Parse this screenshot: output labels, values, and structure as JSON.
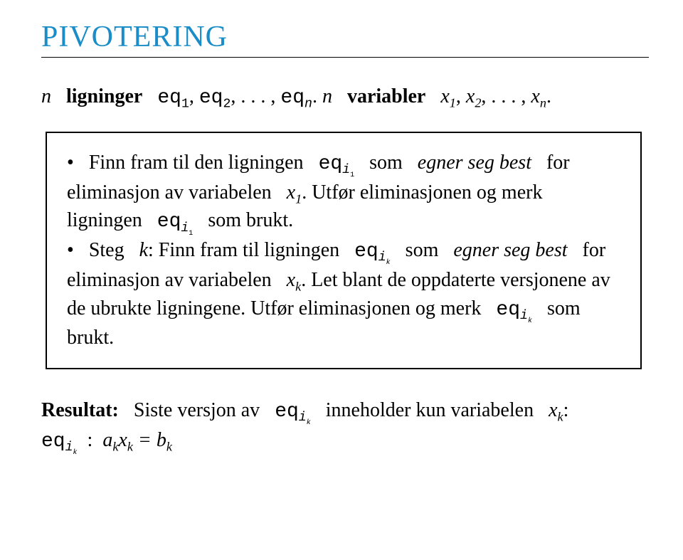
{
  "title_color": "#1a8cc8",
  "text_color": "#000000",
  "border_color": "#000000",
  "background_color": "#ffffff",
  "font_family_serif": "Palatino Linotype, Book Antiqua, Palatino, Georgia, serif",
  "font_family_mono": "Courier New, Courier, monospace",
  "title_fontsize": 42,
  "body_fontsize": 28,
  "title": "PIVOTERING",
  "intro": {
    "n": "n",
    "ligninger_label": "ligninger",
    "eq_list": "eq",
    "variabler_label": "variabler",
    "x": "x"
  },
  "box": {
    "bullet": "•",
    "p1_a": "Finn fram til den ligningen",
    "p1_b": "som",
    "p1_c": "egner seg best",
    "p1_d": "for eliminasjon av variabelen",
    "p1_e": ". Utfør eliminasjonen og merk ligningen",
    "p1_f": "som brukt.",
    "p2_a": "Steg",
    "p2_k": "k",
    "p2_b": ": Finn fram til ligningen",
    "p2_c": "som",
    "p2_d": "egner seg best",
    "p2_e": "for eliminasjon av variabelen",
    "p2_f": ". Let blant de oppdaterte versjonene av de ubrukte ligningene. Utfør eliminasjonen og merk",
    "p2_g": "som brukt."
  },
  "result": {
    "label": "Resultat:",
    "a": "Siste versjon av",
    "b": "inneholder kun variabelen",
    "colon": ":"
  }
}
